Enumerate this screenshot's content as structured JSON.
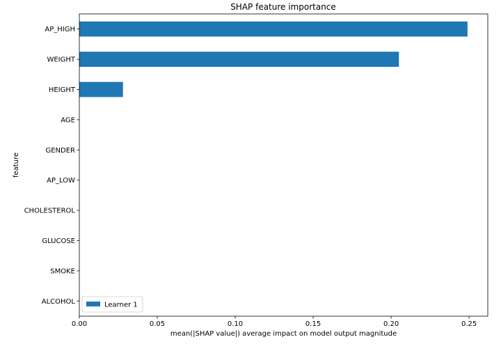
{
  "chart_data": {
    "type": "bar",
    "orientation": "horizontal",
    "title": "SHAP feature importance",
    "xlabel": "mean(|SHAP value|) average impact on model output magnitude",
    "ylabel": "feature",
    "categories": [
      "AP_HIGH",
      "WEIGHT",
      "HEIGHT",
      "AGE",
      "GENDER",
      "AP_LOW",
      "CHOLESTEROL",
      "GLUCOSE",
      "SMOKE",
      "ALCOHOL"
    ],
    "series": [
      {
        "name": "Learner 1",
        "values": [
          0.249,
          0.205,
          0.028,
          0,
          0,
          0,
          0,
          0,
          0,
          0
        ],
        "color": "#1f77b4"
      }
    ],
    "xlim": [
      0,
      0.262
    ],
    "xticks": [
      0.0,
      0.05,
      0.1,
      0.15,
      0.2,
      0.25
    ],
    "xtick_labels": [
      "0.00",
      "0.05",
      "0.10",
      "0.15",
      "0.20",
      "0.25"
    ],
    "grid": false,
    "legend_position": "lower-left"
  }
}
